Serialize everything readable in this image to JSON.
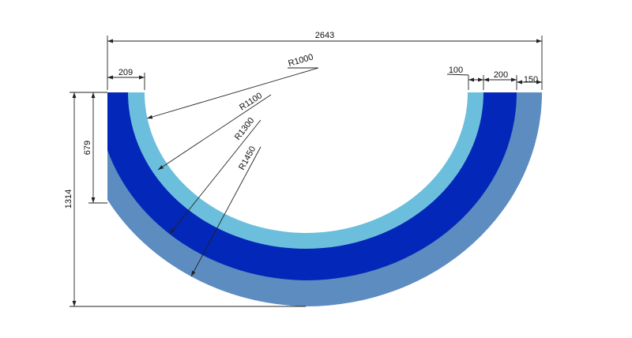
{
  "drawing": {
    "colors": {
      "inner_band": "#6bbfdc",
      "middle_band": "#0327b8",
      "outer_band": "#5c8cc0",
      "dimension": "#222222"
    },
    "labels": {
      "overall_width": "2643",
      "left_width": "209",
      "right_100": "100",
      "right_200": "200",
      "right_150": "150",
      "inner_height": "679",
      "overall_height": "1314",
      "r1000": "R1000",
      "r1100": "R1100",
      "r1300": "R1300",
      "r1450": "R1450"
    }
  }
}
